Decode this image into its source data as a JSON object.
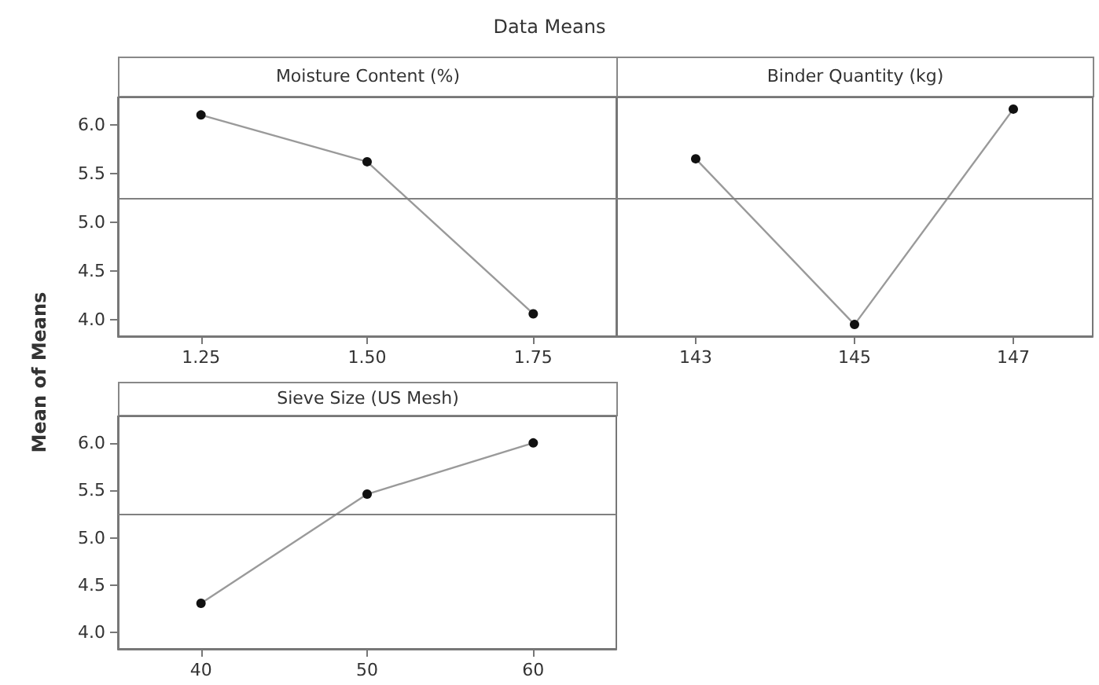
{
  "chart_data": [
    {
      "type": "line",
      "title": "Moisture Content (%)",
      "ylabel": "Mean of Means",
      "annotations": [
        "Data Means"
      ],
      "categories": [
        "1.25",
        "1.50",
        "1.75"
      ],
      "series": [
        {
          "color": "#9a9a9a",
          "values": [
            6.1,
            5.62,
            4.06
          ]
        }
      ],
      "ylim": [
        3.83,
        6.28
      ],
      "yticks": [
        {
          "value": 4,
          "label": "4.0"
        },
        {
          "value": 4.5,
          "label": "4.5"
        },
        {
          "value": 5,
          "label": "5.0"
        },
        {
          "value": 5.5,
          "label": "5.5"
        },
        {
          "value": 6,
          "label": "6.0"
        }
      ],
      "ref_lines": [
        {
          "axis": "y",
          "value": 5.25,
          "color": "#808080"
        }
      ],
      "marker": "circle",
      "line_style": "solid",
      "grid": false
    },
    {
      "type": "line",
      "title": "Binder Quantity (kg)",
      "categories": [
        "143",
        "145",
        "147"
      ],
      "series": [
        {
          "color": "#9a9a9a",
          "values": [
            5.65,
            3.95,
            6.16
          ]
        }
      ],
      "ylim": [
        3.83,
        6.28
      ],
      "ref_lines": [
        {
          "axis": "y",
          "value": 5.25,
          "color": "#808080"
        }
      ],
      "marker": "circle",
      "line_style": "solid",
      "grid": false,
      "tick_labels": "x"
    },
    {
      "type": "line",
      "title": "Sieve Size (US Mesh)",
      "categories": [
        "40",
        "50",
        "60"
      ],
      "series": [
        {
          "color": "#9a9a9a",
          "values": [
            4.31,
            5.46,
            6.0
          ]
        }
      ],
      "ylim": [
        3.83,
        6.28
      ],
      "yticks": [
        {
          "value": 4,
          "label": "4.0"
        },
        {
          "value": 4.5,
          "label": "4.5"
        },
        {
          "value": 5,
          "label": "5.0"
        },
        {
          "value": 5.5,
          "label": "5.5"
        },
        {
          "value": 6,
          "label": "6.0"
        }
      ],
      "ref_lines": [
        {
          "axis": "y",
          "value": 5.25,
          "color": "#808080"
        }
      ],
      "marker": "circle",
      "line_style": "solid",
      "grid": false
    }
  ]
}
